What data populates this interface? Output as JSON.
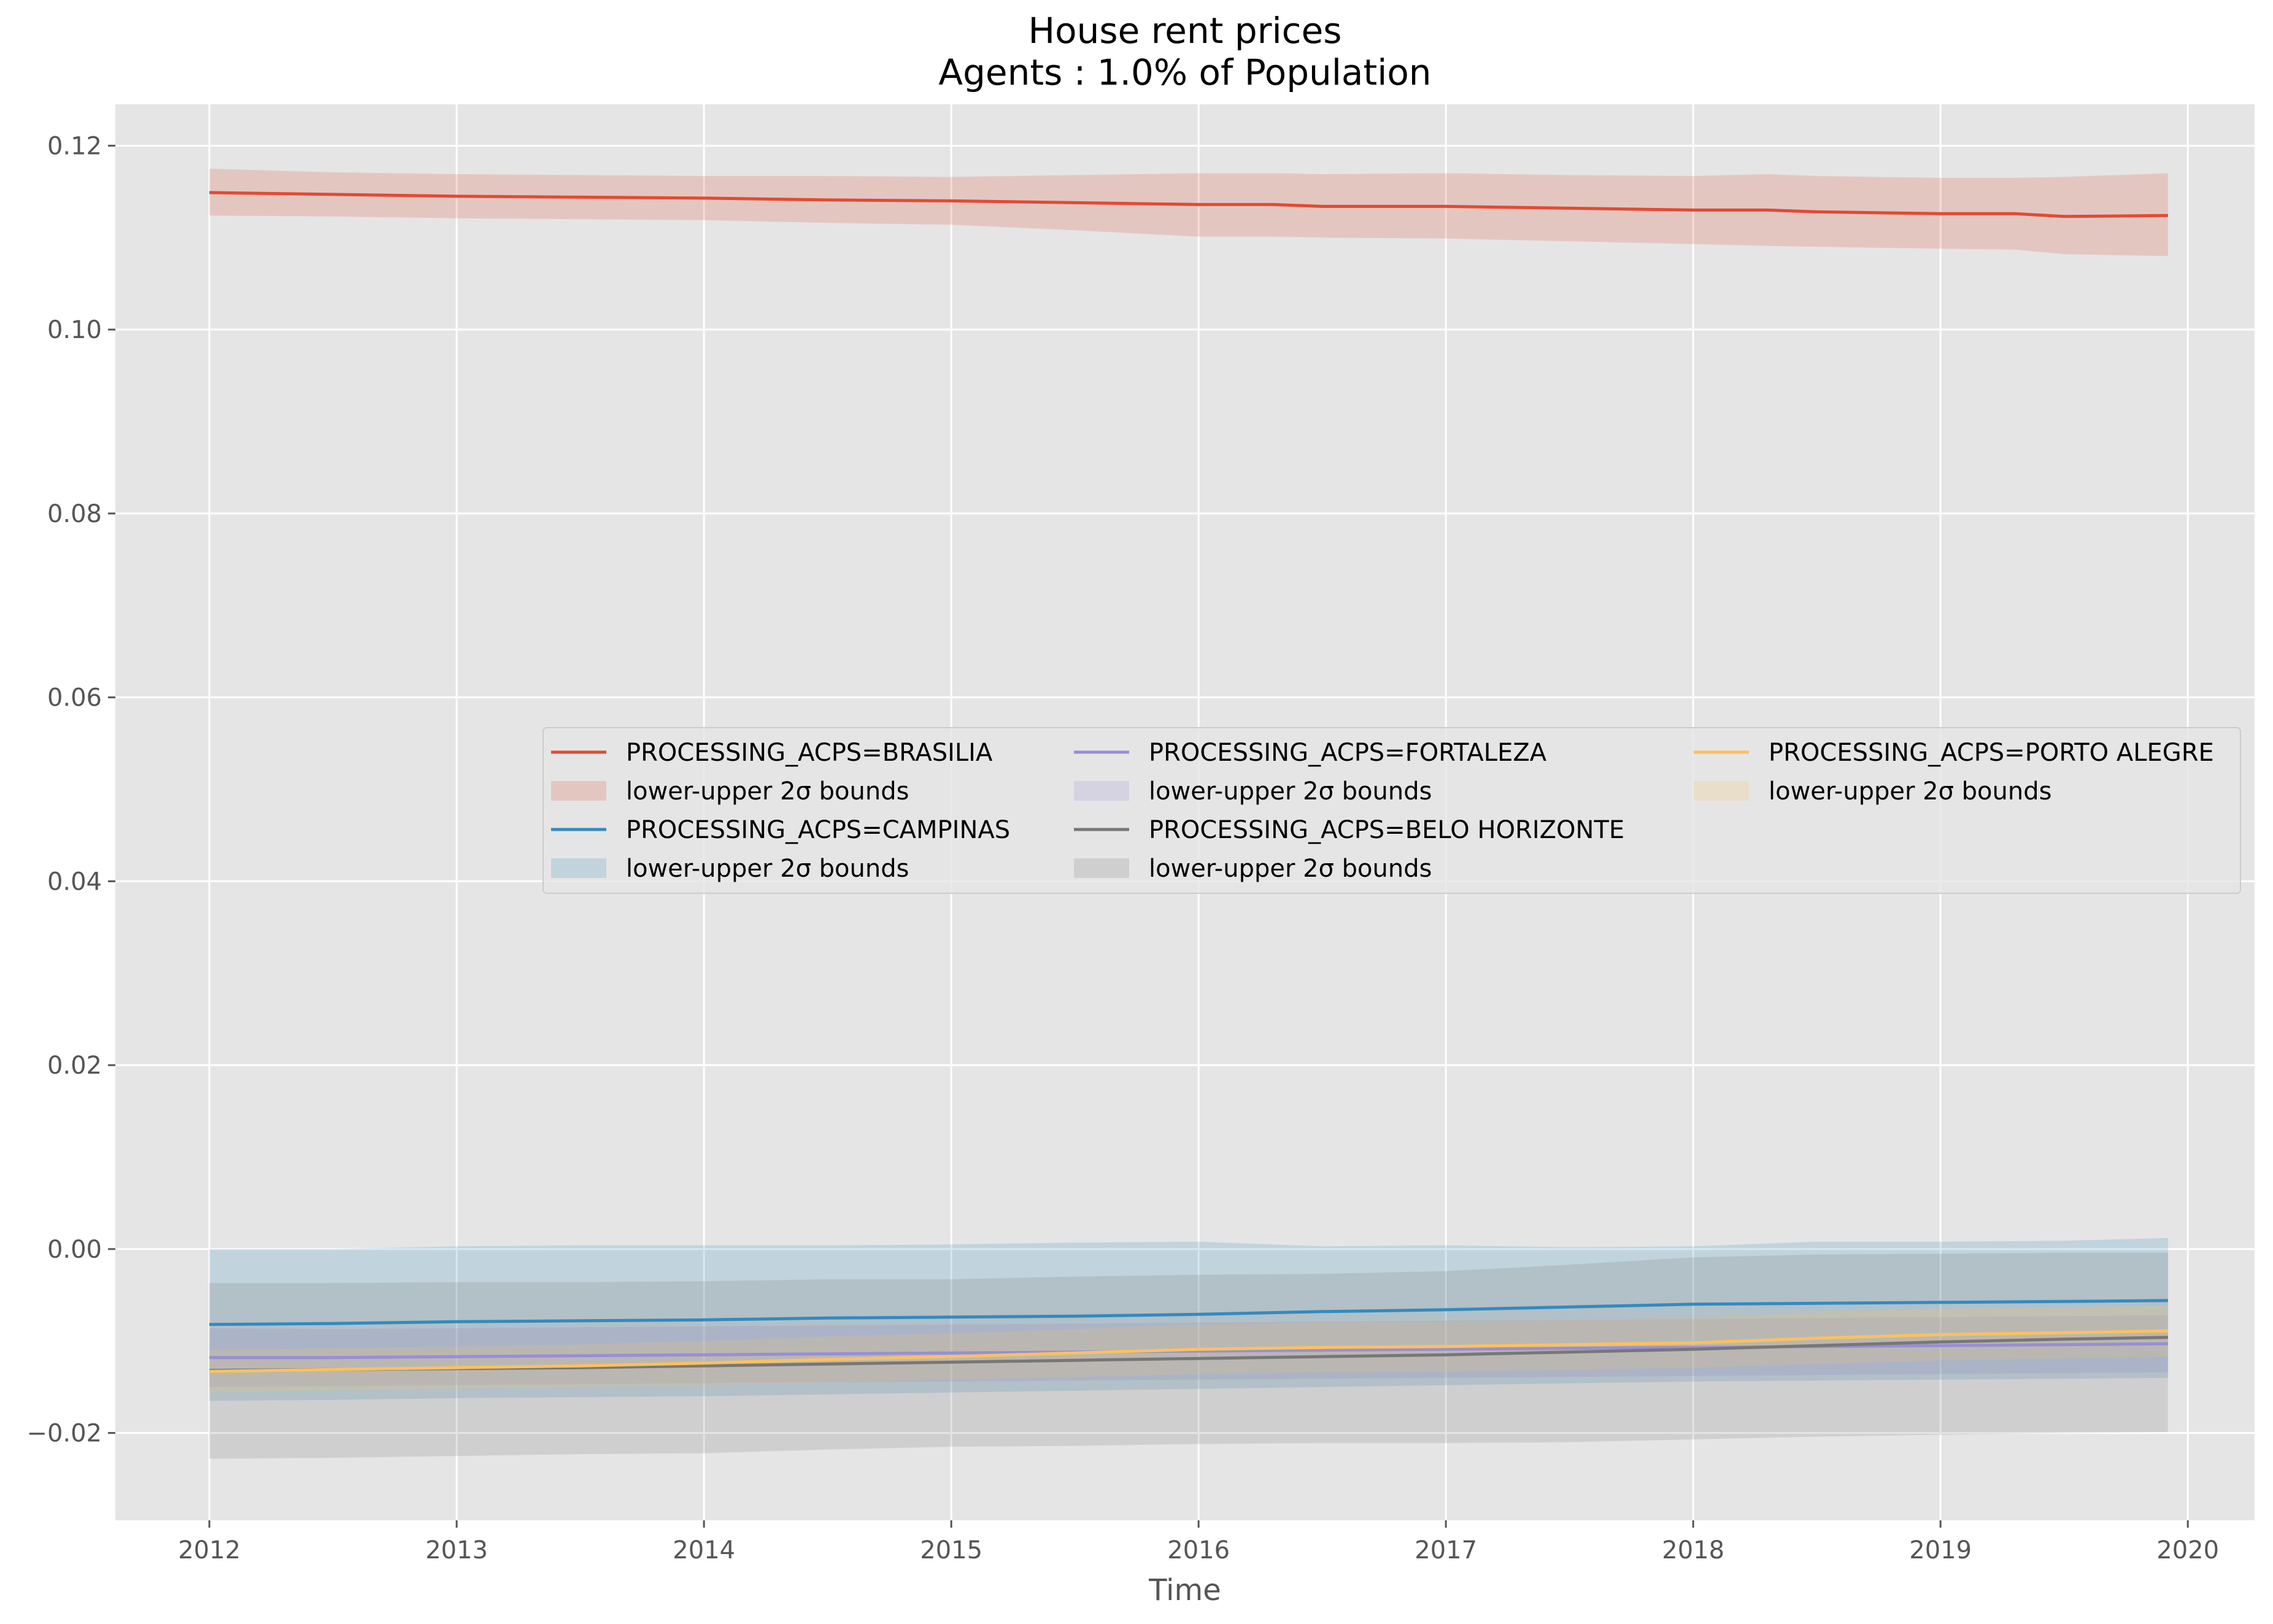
{
  "chart_data": {
    "type": "line",
    "title": "House rent prices",
    "subtitle": "Agents : 1.0% of Population",
    "xlabel": "Time",
    "ylabel": "",
    "xlim": [
      2011.62,
      2020.27
    ],
    "ylim": [
      -0.0295,
      0.1245
    ],
    "xticks": [
      2012,
      2013,
      2014,
      2015,
      2016,
      2017,
      2018,
      2019,
      2020
    ],
    "xtick_labels": [
      "2012",
      "2013",
      "2014",
      "2015",
      "2016",
      "2017",
      "2018",
      "2019",
      "2020"
    ],
    "yticks": [
      -0.02,
      0.0,
      0.02,
      0.04,
      0.06,
      0.08,
      0.1,
      0.12
    ],
    "ytick_labels": [
      "−0.02",
      "0.00",
      "0.02",
      "0.04",
      "0.06",
      "0.08",
      "0.10",
      "0.12"
    ],
    "grid": true,
    "legend_placement": "center-right",
    "legend_columns": 3,
    "background": "#e5e5e5",
    "band_label": "lower-upper 2σ bounds",
    "series": [
      {
        "name": "PROCESSING_ACPS=BRASILIA",
        "color": "#e24a33",
        "x": [
          2012.0,
          2012.5,
          2013.0,
          2013.5,
          2014.0,
          2014.5,
          2015.0,
          2015.5,
          2016.0,
          2016.3,
          2016.5,
          2017.0,
          2017.5,
          2018.0,
          2018.3,
          2018.5,
          2019.0,
          2019.3,
          2019.5,
          2019.92
        ],
        "y": [
          0.1149,
          0.1147,
          0.1145,
          0.1144,
          0.1143,
          0.1141,
          0.114,
          0.1138,
          0.1136,
          0.1136,
          0.1134,
          0.1134,
          0.1132,
          0.113,
          0.113,
          0.1128,
          0.1126,
          0.1126,
          0.1123,
          0.1124
        ],
        "lower": [
          0.1124,
          0.1123,
          0.1121,
          0.112,
          0.1119,
          0.1116,
          0.1114,
          0.1108,
          0.1101,
          0.1101,
          0.11,
          0.1099,
          0.1096,
          0.1093,
          0.1091,
          0.109,
          0.1088,
          0.1087,
          0.1082,
          0.108
        ],
        "upper": [
          0.1175,
          0.1171,
          0.1169,
          0.1168,
          0.1167,
          0.1167,
          0.1166,
          0.1168,
          0.117,
          0.117,
          0.1169,
          0.117,
          0.1168,
          0.1167,
          0.1169,
          0.1167,
          0.1165,
          0.1165,
          0.1166,
          0.117
        ]
      },
      {
        "name": "PROCESSING_ACPS=CAMPINAS",
        "color": "#348abd",
        "x": [
          2012.0,
          2012.5,
          2013.0,
          2013.5,
          2014.0,
          2014.5,
          2015.0,
          2015.5,
          2016.0,
          2016.5,
          2017.0,
          2017.5,
          2018.0,
          2018.5,
          2019.0,
          2019.5,
          2019.92
        ],
        "y": [
          -0.0082,
          -0.0081,
          -0.0079,
          -0.0078,
          -0.0077,
          -0.0075,
          -0.0074,
          -0.0073,
          -0.0071,
          -0.0068,
          -0.0066,
          -0.0063,
          -0.006,
          -0.0059,
          -0.0058,
          -0.0057,
          -0.0056
        ],
        "lower": [
          -0.0165,
          -0.0164,
          -0.0162,
          -0.0161,
          -0.016,
          -0.0158,
          -0.0156,
          -0.0154,
          -0.0152,
          -0.015,
          -0.0148,
          -0.0146,
          -0.0144,
          -0.0143,
          -0.0142,
          -0.0141,
          -0.014
        ],
        "upper": [
          0.0,
          0.0,
          0.0003,
          0.0004,
          0.0004,
          0.0004,
          0.0005,
          0.0007,
          0.0008,
          0.0003,
          0.0004,
          0.0002,
          0.0003,
          0.0008,
          0.0008,
          0.0009,
          0.0012
        ]
      },
      {
        "name": "PROCESSING_ACPS=FORTALEZA",
        "color": "#988ed5",
        "x": [
          2012.0,
          2012.5,
          2013.0,
          2013.5,
          2014.0,
          2014.5,
          2015.0,
          2015.5,
          2016.0,
          2016.5,
          2017.0,
          2017.5,
          2018.0,
          2018.5,
          2019.0,
          2019.5,
          2019.92
        ],
        "y": [
          -0.0118,
          -0.0118,
          -0.0117,
          -0.0116,
          -0.0115,
          -0.0114,
          -0.0113,
          -0.0112,
          -0.0111,
          -0.011,
          -0.0109,
          -0.0108,
          -0.0107,
          -0.0106,
          -0.0105,
          -0.0104,
          -0.0103
        ],
        "lower": [
          -0.015,
          -0.0149,
          -0.0148,
          -0.0147,
          -0.0146,
          -0.0145,
          -0.0144,
          -0.0143,
          -0.0142,
          -0.0141,
          -0.014,
          -0.0139,
          -0.0138,
          -0.0137,
          -0.0136,
          -0.0135,
          -0.0134
        ],
        "upper": [
          -0.0086,
          -0.0087,
          -0.0086,
          -0.0085,
          -0.0084,
          -0.0083,
          -0.0082,
          -0.0081,
          -0.008,
          -0.0079,
          -0.0078,
          -0.0077,
          -0.0076,
          -0.0075,
          -0.0074,
          -0.0073,
          -0.0072
        ]
      },
      {
        "name": "PROCESSING_ACPS=BELO HORIZONTE",
        "color": "#777777",
        "x": [
          2012.0,
          2012.5,
          2013.0,
          2013.5,
          2014.0,
          2014.5,
          2015.0,
          2015.5,
          2016.0,
          2016.5,
          2017.0,
          2017.5,
          2018.0,
          2018.5,
          2019.0,
          2019.5,
          2019.92
        ],
        "y": [
          -0.0132,
          -0.0131,
          -0.013,
          -0.0129,
          -0.0127,
          -0.0125,
          -0.0123,
          -0.0121,
          -0.0119,
          -0.0117,
          -0.0115,
          -0.0112,
          -0.0109,
          -0.0105,
          -0.0101,
          -0.0098,
          -0.0096
        ],
        "lower": [
          -0.0228,
          -0.0227,
          -0.0225,
          -0.0223,
          -0.0222,
          -0.0218,
          -0.0215,
          -0.0214,
          -0.0212,
          -0.0211,
          -0.0211,
          -0.021,
          -0.0207,
          -0.0204,
          -0.0202,
          -0.02,
          -0.0199
        ],
        "upper": [
          -0.0037,
          -0.0037,
          -0.0036,
          -0.0036,
          -0.0035,
          -0.0033,
          -0.0033,
          -0.003,
          -0.0028,
          -0.0027,
          -0.0024,
          -0.0017,
          -0.0009,
          -0.0006,
          -0.0005,
          -0.0004,
          -0.0004
        ]
      },
      {
        "name": "PROCESSING_ACPS=PORTO ALEGRE",
        "color": "#fbc15e",
        "x": [
          2012.0,
          2012.5,
          2013.0,
          2013.5,
          2014.0,
          2014.5,
          2015.0,
          2015.5,
          2016.0,
          2016.5,
          2017.0,
          2017.5,
          2018.0,
          2018.5,
          2019.0,
          2019.5,
          2019.92
        ],
        "y": [
          -0.0133,
          -0.0131,
          -0.0129,
          -0.0127,
          -0.0124,
          -0.012,
          -0.0117,
          -0.0113,
          -0.0109,
          -0.0107,
          -0.0106,
          -0.0104,
          -0.0102,
          -0.0097,
          -0.0093,
          -0.0091,
          -0.0089
        ],
        "lower": [
          -0.0156,
          -0.0154,
          -0.0152,
          -0.015,
          -0.0148,
          -0.0145,
          -0.0142,
          -0.0139,
          -0.0136,
          -0.0134,
          -0.0133,
          -0.0131,
          -0.0129,
          -0.0125,
          -0.0121,
          -0.0119,
          -0.0117
        ],
        "upper": [
          -0.011,
          -0.0108,
          -0.0106,
          -0.0104,
          -0.01,
          -0.0095,
          -0.0092,
          -0.0087,
          -0.0082,
          -0.008,
          -0.0079,
          -0.0077,
          -0.0075,
          -0.0069,
          -0.0065,
          -0.0063,
          -0.0061
        ]
      }
    ]
  },
  "legend": {
    "items": [
      {
        "label": "PROCESSING_ACPS=BRASILIA",
        "kind": "line",
        "color": "#e24a33"
      },
      {
        "label": "lower-upper 2σ bounds",
        "kind": "band",
        "color": "#e24a33"
      },
      {
        "label": "PROCESSING_ACPS=CAMPINAS",
        "kind": "line",
        "color": "#348abd"
      },
      {
        "label": "lower-upper 2σ bounds",
        "kind": "band",
        "color": "#348abd"
      },
      {
        "label": "PROCESSING_ACPS=FORTALEZA",
        "kind": "line",
        "color": "#988ed5"
      },
      {
        "label": "lower-upper 2σ bounds",
        "kind": "band",
        "color": "#988ed5"
      },
      {
        "label": "PROCESSING_ACPS=BELO HORIZONTE",
        "kind": "line",
        "color": "#777777"
      },
      {
        "label": "lower-upper 2σ bounds",
        "kind": "band",
        "color": "#777777"
      },
      {
        "label": "PROCESSING_ACPS=PORTO ALEGRE",
        "kind": "line",
        "color": "#fbc15e"
      },
      {
        "label": "lower-upper 2σ bounds",
        "kind": "band",
        "color": "#fbc15e"
      }
    ]
  }
}
